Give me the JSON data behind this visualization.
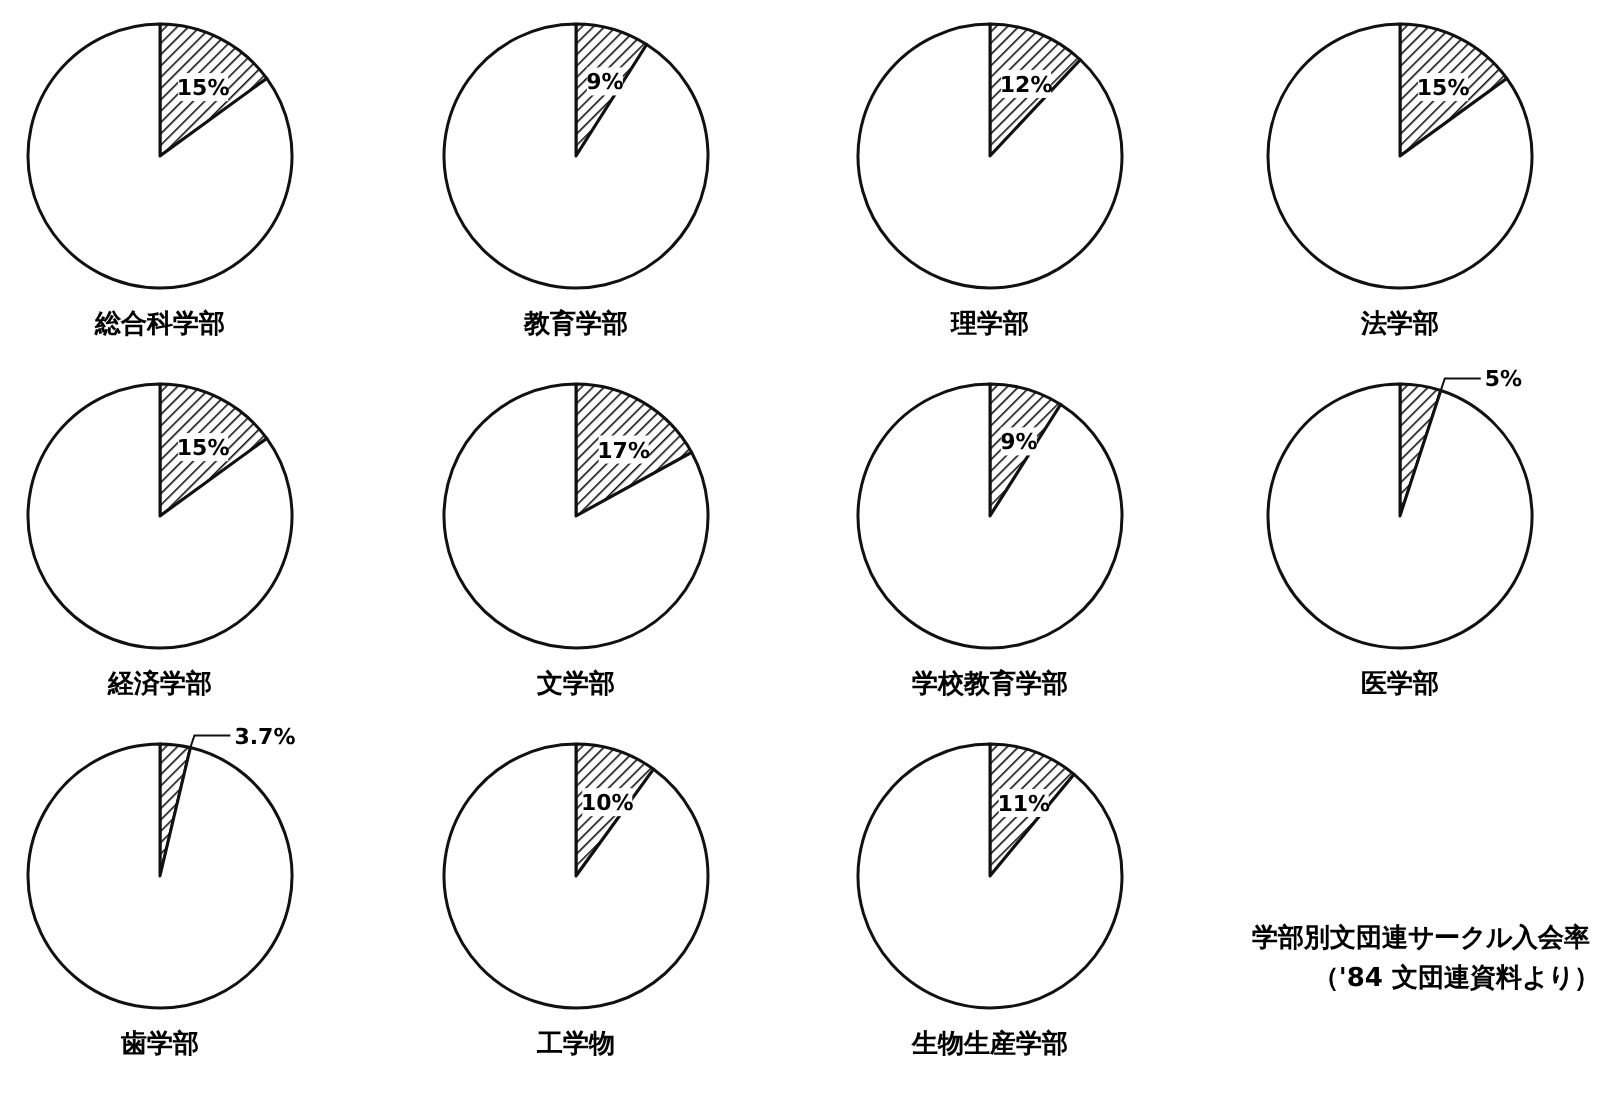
{
  "chart_data": [
    {
      "type": "pie",
      "title": "総合科学部",
      "categories": [
        null,
        null
      ],
      "values": [
        15,
        85
      ],
      "colors": [
        "#111111",
        "#ffffff"
      ],
      "value_labels": [
        "15%",
        null
      ]
    },
    {
      "type": "pie",
      "title": "教育学部",
      "categories": [
        null,
        null
      ],
      "values": [
        9,
        91
      ],
      "colors": [
        "#111111",
        "#ffffff"
      ],
      "value_labels": [
        "9%",
        null
      ]
    },
    {
      "type": "pie",
      "title": "理学部",
      "categories": [
        null,
        null
      ],
      "values": [
        12,
        88
      ],
      "colors": [
        "#111111",
        "#ffffff"
      ],
      "value_labels": [
        "12%",
        null
      ]
    },
    {
      "type": "pie",
      "title": "法学部",
      "categories": [
        null,
        null
      ],
      "values": [
        15,
        85
      ],
      "colors": [
        "#111111",
        "#ffffff"
      ],
      "value_labels": [
        "15%",
        null
      ]
    },
    {
      "type": "pie",
      "title": "経済学部",
      "categories": [
        null,
        null
      ],
      "values": [
        15,
        85
      ],
      "colors": [
        "#111111",
        "#ffffff"
      ],
      "value_labels": [
        "15%",
        null
      ]
    },
    {
      "type": "pie",
      "title": "文学部",
      "categories": [
        null,
        null
      ],
      "values": [
        17,
        83
      ],
      "colors": [
        "#111111",
        "#ffffff"
      ],
      "value_labels": [
        "17%",
        null
      ]
    },
    {
      "type": "pie",
      "title": "学校教育学部",
      "categories": [
        null,
        null
      ],
      "values": [
        9,
        91
      ],
      "colors": [
        "#111111",
        "#ffffff"
      ],
      "value_labels": [
        "9%",
        null
      ]
    },
    {
      "type": "pie",
      "title": "医学部",
      "categories": [
        null,
        null
      ],
      "values": [
        5,
        95
      ],
      "colors": [
        "#111111",
        "#ffffff"
      ],
      "value_labels": [
        "5%",
        null
      ]
    },
    {
      "type": "pie",
      "title": "歯学部",
      "categories": [
        null,
        null
      ],
      "values": [
        3.7,
        96.3
      ],
      "colors": [
        "#111111",
        "#ffffff"
      ],
      "value_labels": [
        "3.7%",
        null
      ]
    },
    {
      "type": "pie",
      "title": "工学物",
      "categories": [
        null,
        null
      ],
      "values": [
        10,
        90
      ],
      "colors": [
        "#111111",
        "#ffffff"
      ],
      "value_labels": [
        "10%",
        null
      ]
    },
    {
      "type": "pie",
      "title": "生物生産学部",
      "categories": [
        null,
        null
      ],
      "values": [
        11,
        89
      ],
      "colors": [
        "#111111",
        "#ffffff"
      ],
      "value_labels": [
        "11%",
        null
      ]
    },
    {
      "type": "other",
      "title": "学部別文団連サークル入会率",
      "subtitle": "（'84 文団連資料より）"
    }
  ]
}
